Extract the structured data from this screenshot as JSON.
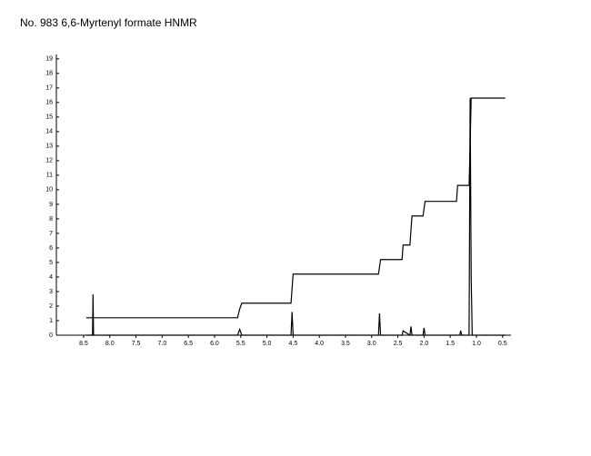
{
  "chart_data": {
    "type": "line",
    "title": "No. 983 6,6-Myrtenyl formate HNMR",
    "x": [
      8.45,
      8.33,
      8.32,
      8.31,
      5.56,
      5.52,
      5.48,
      4.54,
      4.52,
      4.5,
      2.87,
      2.85,
      2.83,
      2.42,
      2.4,
      2.27,
      2.25,
      2.23,
      2.02,
      2.0,
      1.98,
      1.38,
      1.36,
      1.32,
      1.3,
      1.28,
      1.14,
      1.12,
      1.1,
      1.08,
      0.45
    ],
    "series": [
      {
        "name": "spectrum",
        "color": "#000000",
        "values": [
          0,
          0,
          2.8,
          0,
          0,
          0.4,
          0,
          0,
          1.6,
          0,
          0,
          1.5,
          0,
          0,
          0.3,
          0,
          0.6,
          0,
          0,
          0.5,
          0,
          0,
          0,
          0,
          0.3,
          0,
          0,
          16.3,
          4,
          0,
          0
        ]
      },
      {
        "name": "integral",
        "color": "#000000",
        "values": [
          1.2,
          1.2,
          1.2,
          1.2,
          1.2,
          1.8,
          2.2,
          2.2,
          3.2,
          4.2,
          4.2,
          4.7,
          5.2,
          5.2,
          6.2,
          6.2,
          7.2,
          8.2,
          8.2,
          8.7,
          9.2,
          9.2,
          10.3,
          10.3,
          10.3,
          10.3,
          10.3,
          13,
          16.3,
          16.3,
          16.3
        ]
      }
    ],
    "xlim": [
      9.02,
      0.34
    ],
    "xticks": [
      8.5,
      {
        "value": 8,
        "label": "8.0"
      },
      7.5,
      {
        "value": 7,
        "label": "7.0"
      },
      6.5,
      {
        "value": 6,
        "label": "6.0"
      },
      5.5,
      {
        "value": 5,
        "label": "5.0"
      },
      4.5,
      {
        "value": 4,
        "label": "4.0"
      },
      3.5,
      {
        "value": 3,
        "label": "3.0"
      },
      2.5,
      {
        "value": 2,
        "label": "2.0"
      },
      1.5,
      {
        "value": 1,
        "label": "1.0"
      },
      0.5
    ],
    "ylim": [
      0,
      19.3
    ],
    "yticks": [
      0,
      1,
      2,
      3,
      4,
      5,
      6,
      7,
      8,
      9,
      10,
      11,
      12,
      13,
      14,
      15,
      16,
      17,
      18,
      19
    ],
    "grid": false
  }
}
